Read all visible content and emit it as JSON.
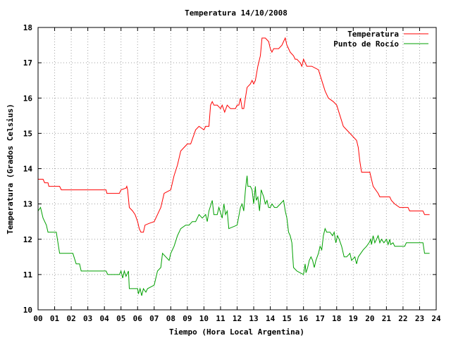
{
  "chart_data": {
    "type": "line",
    "title": "Temperatura 14/10/2008",
    "xlabel": "Tiempo (Hora Local Argentina)",
    "ylabel": "Temperatura (Grados Celsius)",
    "xlim": [
      0,
      24
    ],
    "ylim": [
      10,
      18
    ],
    "x_ticks": [
      "00",
      "01",
      "02",
      "03",
      "04",
      "05",
      "06",
      "07",
      "08",
      "09",
      "10",
      "11",
      "12",
      "13",
      "14",
      "15",
      "16",
      "17",
      "18",
      "19",
      "20",
      "21",
      "22",
      "23",
      "24"
    ],
    "y_ticks": [
      "10",
      "11",
      "12",
      "13",
      "14",
      "15",
      "16",
      "17",
      "18"
    ],
    "grid": true,
    "legend_position": "top-right",
    "series": [
      {
        "name": "Temperatura",
        "color": "#ff0000",
        "points": [
          [
            0.0,
            13.7
          ],
          [
            0.3,
            13.7
          ],
          [
            0.4,
            13.6
          ],
          [
            0.6,
            13.6
          ],
          [
            0.65,
            13.5
          ],
          [
            1.3,
            13.5
          ],
          [
            1.4,
            13.4
          ],
          [
            4.1,
            13.4
          ],
          [
            4.15,
            13.3
          ],
          [
            4.9,
            13.3
          ],
          [
            5.0,
            13.4
          ],
          [
            5.3,
            13.45
          ],
          [
            5.35,
            13.5
          ],
          [
            5.4,
            13.4
          ],
          [
            5.5,
            12.9
          ],
          [
            5.7,
            12.8
          ],
          [
            5.85,
            12.7
          ],
          [
            6.0,
            12.5
          ],
          [
            6.1,
            12.3
          ],
          [
            6.2,
            12.2
          ],
          [
            6.35,
            12.2
          ],
          [
            6.45,
            12.4
          ],
          [
            6.7,
            12.45
          ],
          [
            7.0,
            12.5
          ],
          [
            7.2,
            12.7
          ],
          [
            7.4,
            12.9
          ],
          [
            7.6,
            13.3
          ],
          [
            8.0,
            13.4
          ],
          [
            8.2,
            13.8
          ],
          [
            8.4,
            14.1
          ],
          [
            8.6,
            14.5
          ],
          [
            8.8,
            14.6
          ],
          [
            9.0,
            14.7
          ],
          [
            9.2,
            14.7
          ],
          [
            9.5,
            15.1
          ],
          [
            9.7,
            15.2
          ],
          [
            10.0,
            15.1
          ],
          [
            10.1,
            15.2
          ],
          [
            10.3,
            15.2
          ],
          [
            10.4,
            15.8
          ],
          [
            10.5,
            15.9
          ],
          [
            10.6,
            15.8
          ],
          [
            10.8,
            15.8
          ],
          [
            11.0,
            15.7
          ],
          [
            11.1,
            15.8
          ],
          [
            11.25,
            15.6
          ],
          [
            11.4,
            15.8
          ],
          [
            11.6,
            15.7
          ],
          [
            11.9,
            15.7
          ],
          [
            12.0,
            15.8
          ],
          [
            12.1,
            15.8
          ],
          [
            12.2,
            16.0
          ],
          [
            12.3,
            15.7
          ],
          [
            12.4,
            15.7
          ],
          [
            12.6,
            16.3
          ],
          [
            12.8,
            16.4
          ],
          [
            12.9,
            16.5
          ],
          [
            13.0,
            16.4
          ],
          [
            13.1,
            16.5
          ],
          [
            13.25,
            16.9
          ],
          [
            13.4,
            17.2
          ],
          [
            13.5,
            17.7
          ],
          [
            13.7,
            17.7
          ],
          [
            13.9,
            17.6
          ],
          [
            14.0,
            17.4
          ],
          [
            14.1,
            17.3
          ],
          [
            14.2,
            17.4
          ],
          [
            14.3,
            17.4
          ],
          [
            14.5,
            17.4
          ],
          [
            14.7,
            17.5
          ],
          [
            14.8,
            17.6
          ],
          [
            14.9,
            17.7
          ],
          [
            15.0,
            17.5
          ],
          [
            15.1,
            17.4
          ],
          [
            15.2,
            17.3
          ],
          [
            15.4,
            17.2
          ],
          [
            15.5,
            17.1
          ],
          [
            15.6,
            17.1
          ],
          [
            15.8,
            17.0
          ],
          [
            15.9,
            16.9
          ],
          [
            16.0,
            17.1
          ],
          [
            16.1,
            17.0
          ],
          [
            16.2,
            16.9
          ],
          [
            16.5,
            16.9
          ],
          [
            16.9,
            16.8
          ],
          [
            17.1,
            16.5
          ],
          [
            17.3,
            16.2
          ],
          [
            17.5,
            16.0
          ],
          [
            17.8,
            15.9
          ],
          [
            18.0,
            15.8
          ],
          [
            18.2,
            15.5
          ],
          [
            18.4,
            15.2
          ],
          [
            18.6,
            15.1
          ],
          [
            18.8,
            15.0
          ],
          [
            19.0,
            14.9
          ],
          [
            19.2,
            14.8
          ],
          [
            19.3,
            14.6
          ],
          [
            19.4,
            14.2
          ],
          [
            19.5,
            13.9
          ],
          [
            20.0,
            13.9
          ],
          [
            20.2,
            13.5
          ],
          [
            20.5,
            13.3
          ],
          [
            20.6,
            13.2
          ],
          [
            21.2,
            13.2
          ],
          [
            21.3,
            13.1
          ],
          [
            21.5,
            13.0
          ],
          [
            21.8,
            12.9
          ],
          [
            22.3,
            12.9
          ],
          [
            22.4,
            12.8
          ],
          [
            23.2,
            12.8
          ],
          [
            23.3,
            12.7
          ],
          [
            23.6,
            12.7
          ]
        ]
      },
      {
        "name": "Punto de Rocío",
        "color": "#00a000",
        "points": [
          [
            0.0,
            12.8
          ],
          [
            0.15,
            12.9
          ],
          [
            0.3,
            12.6
          ],
          [
            0.5,
            12.4
          ],
          [
            0.6,
            12.2
          ],
          [
            1.1,
            12.2
          ],
          [
            1.3,
            11.6
          ],
          [
            2.1,
            11.6
          ],
          [
            2.3,
            11.3
          ],
          [
            2.5,
            11.3
          ],
          [
            2.6,
            11.1
          ],
          [
            4.1,
            11.1
          ],
          [
            4.2,
            11.0
          ],
          [
            4.9,
            11.0
          ],
          [
            5.0,
            11.1
          ],
          [
            5.1,
            10.9
          ],
          [
            5.2,
            11.1
          ],
          [
            5.3,
            10.95
          ],
          [
            5.45,
            11.1
          ],
          [
            5.5,
            10.6
          ],
          [
            6.0,
            10.6
          ],
          [
            6.05,
            10.45
          ],
          [
            6.15,
            10.6
          ],
          [
            6.25,
            10.4
          ],
          [
            6.35,
            10.6
          ],
          [
            6.5,
            10.5
          ],
          [
            6.6,
            10.6
          ],
          [
            6.8,
            10.65
          ],
          [
            7.0,
            10.7
          ],
          [
            7.2,
            11.1
          ],
          [
            7.4,
            11.2
          ],
          [
            7.5,
            11.6
          ],
          [
            7.7,
            11.5
          ],
          [
            7.9,
            11.4
          ],
          [
            8.0,
            11.6
          ],
          [
            8.2,
            11.8
          ],
          [
            8.4,
            12.1
          ],
          [
            8.6,
            12.3
          ],
          [
            8.9,
            12.4
          ],
          [
            9.1,
            12.4
          ],
          [
            9.3,
            12.5
          ],
          [
            9.5,
            12.5
          ],
          [
            9.7,
            12.7
          ],
          [
            9.9,
            12.6
          ],
          [
            10.1,
            12.7
          ],
          [
            10.2,
            12.5
          ],
          [
            10.3,
            12.8
          ],
          [
            10.5,
            13.1
          ],
          [
            10.6,
            12.7
          ],
          [
            10.8,
            12.7
          ],
          [
            10.9,
            12.9
          ],
          [
            11.1,
            12.6
          ],
          [
            11.2,
            13.0
          ],
          [
            11.3,
            12.7
          ],
          [
            11.4,
            12.8
          ],
          [
            11.5,
            12.3
          ],
          [
            12.0,
            12.4
          ],
          [
            12.2,
            12.9
          ],
          [
            12.3,
            13.0
          ],
          [
            12.4,
            12.8
          ],
          [
            12.5,
            13.4
          ],
          [
            12.6,
            13.8
          ],
          [
            12.65,
            13.5
          ],
          [
            12.8,
            13.5
          ],
          [
            12.9,
            13.4
          ],
          [
            13.0,
            13.0
          ],
          [
            13.1,
            13.5
          ],
          [
            13.15,
            13.1
          ],
          [
            13.25,
            13.2
          ],
          [
            13.35,
            12.8
          ],
          [
            13.45,
            13.4
          ],
          [
            13.6,
            13.2
          ],
          [
            13.7,
            13.0
          ],
          [
            13.8,
            13.1
          ],
          [
            13.9,
            12.9
          ],
          [
            14.0,
            12.9
          ],
          [
            14.1,
            13.0
          ],
          [
            14.25,
            12.9
          ],
          [
            14.4,
            12.9
          ],
          [
            14.6,
            13.0
          ],
          [
            14.8,
            13.1
          ],
          [
            14.9,
            12.8
          ],
          [
            15.0,
            12.6
          ],
          [
            15.1,
            12.2
          ],
          [
            15.2,
            12.1
          ],
          [
            15.3,
            11.9
          ],
          [
            15.4,
            11.2
          ],
          [
            15.6,
            11.1
          ],
          [
            15.8,
            11.05
          ],
          [
            16.0,
            11.0
          ],
          [
            16.1,
            11.3
          ],
          [
            16.15,
            11.05
          ],
          [
            16.25,
            11.2
          ],
          [
            16.35,
            11.4
          ],
          [
            16.45,
            11.5
          ],
          [
            16.55,
            11.4
          ],
          [
            16.65,
            11.2
          ],
          [
            16.75,
            11.4
          ],
          [
            16.9,
            11.6
          ],
          [
            17.0,
            11.8
          ],
          [
            17.1,
            11.7
          ],
          [
            17.2,
            12.1
          ],
          [
            17.3,
            12.3
          ],
          [
            17.4,
            12.2
          ],
          [
            17.6,
            12.2
          ],
          [
            17.75,
            12.1
          ],
          [
            17.85,
            12.2
          ],
          [
            17.95,
            11.9
          ],
          [
            18.05,
            12.1
          ],
          [
            18.15,
            12.0
          ],
          [
            18.3,
            11.8
          ],
          [
            18.45,
            11.5
          ],
          [
            18.6,
            11.5
          ],
          [
            18.8,
            11.6
          ],
          [
            18.9,
            11.4
          ],
          [
            19.1,
            11.5
          ],
          [
            19.2,
            11.3
          ],
          [
            19.3,
            11.5
          ],
          [
            19.45,
            11.6
          ],
          [
            19.6,
            11.7
          ],
          [
            19.8,
            11.8
          ],
          [
            19.95,
            11.9
          ],
          [
            20.05,
            12.0
          ],
          [
            20.1,
            11.85
          ],
          [
            20.2,
            12.1
          ],
          [
            20.3,
            11.9
          ],
          [
            20.4,
            12.0
          ],
          [
            20.5,
            12.1
          ],
          [
            20.6,
            11.9
          ],
          [
            20.7,
            12.0
          ],
          [
            20.85,
            11.9
          ],
          [
            21.0,
            12.0
          ],
          [
            21.1,
            11.85
          ],
          [
            21.2,
            12.0
          ],
          [
            21.25,
            11.85
          ],
          [
            21.4,
            11.9
          ],
          [
            21.5,
            11.8
          ],
          [
            22.1,
            11.8
          ],
          [
            22.2,
            11.9
          ],
          [
            23.2,
            11.9
          ],
          [
            23.3,
            11.6
          ],
          [
            23.6,
            11.6
          ]
        ]
      }
    ]
  }
}
